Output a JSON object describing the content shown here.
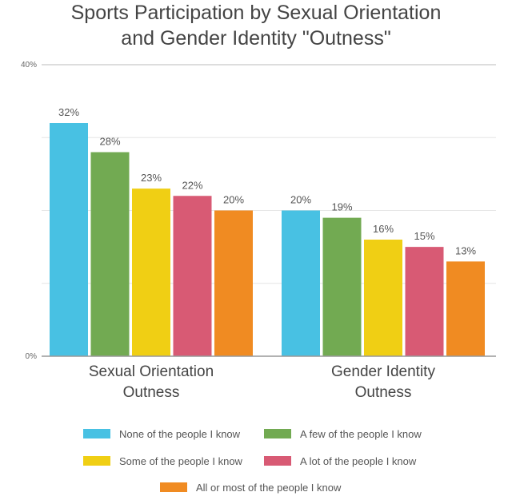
{
  "chart_data": {
    "type": "bar",
    "title": [
      "Sports Participation by Sexual Orientation",
      "and Gender Identity \"Outness\""
    ],
    "xlabel": "",
    "ylabel": "",
    "ylim": [
      0,
      40
    ],
    "grid_step": 10,
    "y_tick_labels": [
      {
        "value": 0,
        "label": "0%"
      },
      {
        "value": 40,
        "label": "40%"
      }
    ],
    "categories": [
      [
        "Sexual Orientation",
        "Outness"
      ],
      [
        "Gender Identity",
        "Outness"
      ]
    ],
    "series": [
      {
        "name": "None of the people I know",
        "color": "#48c1e3",
        "values": [
          32,
          20
        ]
      },
      {
        "name": "A few of the people I know",
        "color": "#72aa52",
        "values": [
          28,
          19
        ]
      },
      {
        "name": "Some of the people I know",
        "color": "#f0cf14",
        "values": [
          23,
          16
        ]
      },
      {
        "name": "A lot of the people I know",
        "color": "#d85a74",
        "values": [
          22,
          15
        ]
      },
      {
        "name": "All or most of the people I know",
        "color": "#f08b22",
        "values": [
          20,
          13
        ]
      }
    ],
    "data_labels": [
      [
        "32%",
        "20%"
      ],
      [
        "28%",
        "19%"
      ],
      [
        "23%",
        "16%"
      ],
      [
        "22%",
        "15%"
      ],
      [
        "20%",
        "13%"
      ]
    ],
    "legend_position": "bottom"
  }
}
